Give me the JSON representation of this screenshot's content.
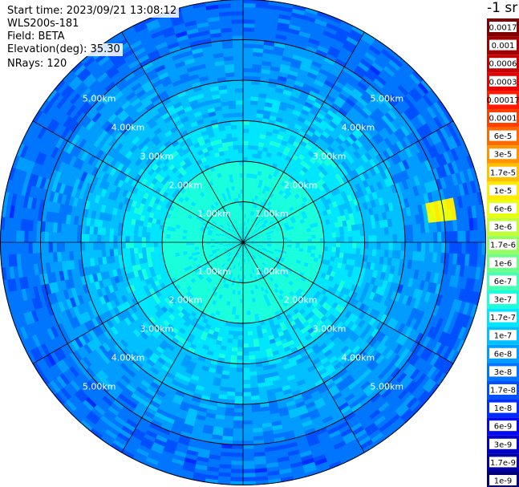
{
  "info": {
    "start_time": "Start time: 2023/09/21 13:08:12",
    "instrument": "WLS200s-181",
    "field": "Field: BETA",
    "elevation": "Elevation(deg): 35.30",
    "nrays": "NRays: 120"
  },
  "colorbar": {
    "unit_title": "-1 sr",
    "entries": [
      {
        "label": "0.0017",
        "color": "#800000"
      },
      {
        "label": "0.001",
        "color": "#a00000"
      },
      {
        "label": "0.0006",
        "color": "#c40000"
      },
      {
        "label": "0.0003",
        "color": "#e60000"
      },
      {
        "label": "0.00017",
        "color": "#ff1a00"
      },
      {
        "label": "0.0001",
        "color": "#ff4000"
      },
      {
        "label": "6e-5",
        "color": "#ff6a00"
      },
      {
        "label": "3e-5",
        "color": "#ff9400"
      },
      {
        "label": "1.7e-5",
        "color": "#ffc000"
      },
      {
        "label": "1e-5",
        "color": "#ffea00"
      },
      {
        "label": "6e-6",
        "color": "#e8ff10"
      },
      {
        "label": "3e-6",
        "color": "#c0ff38"
      },
      {
        "label": "1.7e-6",
        "color": "#96ff60"
      },
      {
        "label": "1e-6",
        "color": "#6cff8a"
      },
      {
        "label": "6e-7",
        "color": "#44ffb4"
      },
      {
        "label": "3e-7",
        "color": "#1affdc"
      },
      {
        "label": "1.7e-7",
        "color": "#00e6ff"
      },
      {
        "label": "1e-7",
        "color": "#00c0ff"
      },
      {
        "label": "6e-8",
        "color": "#009cff"
      },
      {
        "label": "3e-8",
        "color": "#0076ff"
      },
      {
        "label": "1.7e-8",
        "color": "#0050ff"
      },
      {
        "label": "1e-8",
        "color": "#002cff"
      },
      {
        "label": "6e-9",
        "color": "#0008f0"
      },
      {
        "label": "3e-9",
        "color": "#0000c8"
      },
      {
        "label": "1.7e-9",
        "color": "#0000a0"
      },
      {
        "label": "1e-9",
        "color": "#000078"
      }
    ]
  },
  "chart_data": {
    "type": "heatmap",
    "projection": "polar PPI",
    "field": "BETA",
    "elevation_deg": 35.3,
    "n_rays": 120,
    "range_rings_km": [
      1.0,
      2.0,
      3.0,
      4.0,
      5.0
    ],
    "ring_labels": [
      "1.00km",
      "2.00km",
      "3.00km",
      "4.00km",
      "5.00km"
    ],
    "max_range_km": 6.0,
    "azimuth_lines_deg": [
      0,
      30,
      60,
      90,
      120,
      150,
      180,
      210,
      240,
      270,
      300,
      330
    ],
    "colorscale": "jet (log)",
    "value_range": [
      1e-09,
      0.0017
    ],
    "typical_value_by_range_km": [
      {
        "range_km": 0.5,
        "value": "3e-7"
      },
      {
        "range_km": 1.5,
        "value": "3e-7"
      },
      {
        "range_km": 2.5,
        "value": "1.7e-7"
      },
      {
        "range_km": 3.5,
        "value": "1e-7"
      },
      {
        "range_km": 4.5,
        "value": "6e-8"
      },
      {
        "range_km": 5.5,
        "value": "3e-8"
      }
    ],
    "features": [
      {
        "azimuth_deg": 80,
        "range_km": 4.9,
        "value": "1e-5"
      }
    ]
  }
}
